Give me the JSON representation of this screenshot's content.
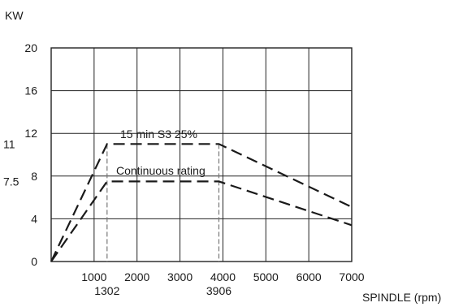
{
  "chart_data": {
    "type": "line",
    "ylabel": "KW",
    "xlabel": "SPINDLE (rpm)",
    "xlim": [
      0,
      7000
    ],
    "ylim": [
      0,
      20
    ],
    "x_ticks": [
      1000,
      2000,
      3000,
      4000,
      5000,
      6000,
      7000
    ],
    "y_ticks": [
      0,
      4,
      8,
      12,
      16,
      20
    ],
    "extra_x_ticks": [
      1302,
      3906
    ],
    "extra_y_ticks": [
      {
        "label": "11",
        "value": 11
      },
      {
        "label": "7.5",
        "value": 7.5
      }
    ],
    "grid": true,
    "series": [
      {
        "name": "15 min S3 25%",
        "x": [
          0,
          1302,
          3906,
          7000
        ],
        "y": [
          0,
          11,
          11,
          5.1
        ]
      },
      {
        "name": "Continuous rating",
        "x": [
          0,
          1302,
          3906,
          7000
        ],
        "y": [
          0,
          7.5,
          7.5,
          3.4
        ]
      }
    ],
    "markers_x": [
      1302,
      3906
    ]
  }
}
